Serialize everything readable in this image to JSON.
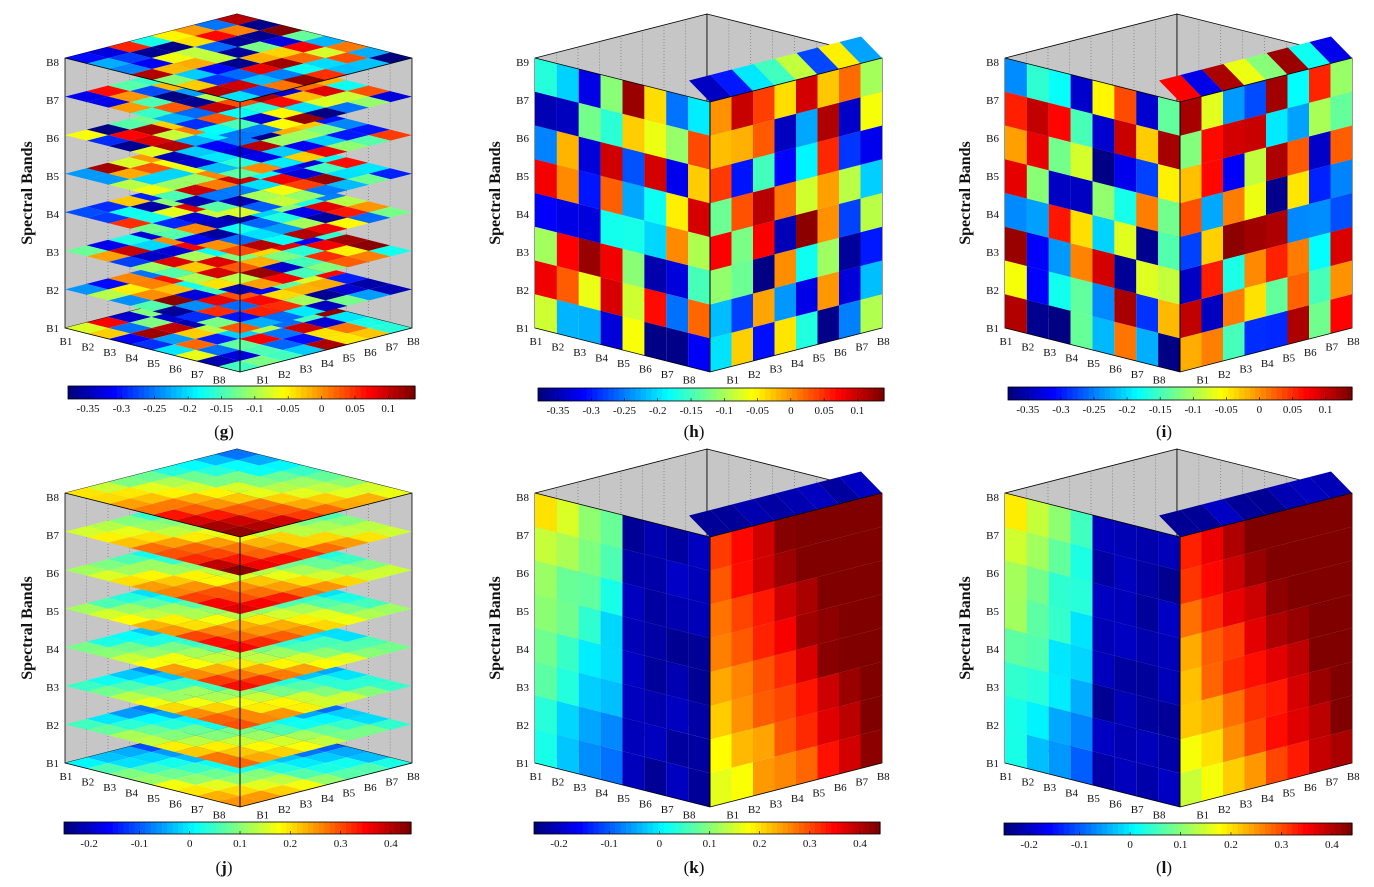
{
  "figure": {
    "description_labels": [
      "(g)",
      "(h)",
      "(i)",
      "(j)",
      "(k)",
      "(l)"
    ]
  },
  "colors": {
    "box_wall": "#c6c6c6",
    "edge": "#000000",
    "text": "#111111"
  },
  "chart_data": [
    {
      "type": "heatmap",
      "subtype": "3d-slice-cube",
      "panel_label": "g",
      "orientation": "horizontal-slices",
      "ylabel": "Spectral Bands",
      "z_tick_labels": [
        "B1",
        "B2",
        "B3",
        "B4",
        "B5",
        "B6",
        "B7",
        "B8"
      ],
      "left_axis_tick_labels": [
        "B1",
        "B2",
        "B3",
        "B4",
        "B5",
        "B6",
        "B7",
        "B8"
      ],
      "right_axis_tick_labels": [
        "B1",
        "B2",
        "B3",
        "B4",
        "B5",
        "B6",
        "B7",
        "B8"
      ],
      "colorbar": {
        "min": -0.38,
        "max": 0.14,
        "tick_labels": [
          "-0.35",
          "-0.3",
          "-0.25",
          "-0.2",
          "-0.15",
          "-0.1",
          "-0.05",
          "0",
          "0.05",
          "0.1"
        ],
        "tick_values": [
          -0.35,
          -0.3,
          -0.25,
          -0.2,
          -0.15,
          -0.1,
          -0.05,
          0,
          0.05,
          0.1
        ]
      },
      "pattern": "random",
      "pattern_seed": 7
    },
    {
      "type": "heatmap",
      "subtype": "3d-slice-cube",
      "panel_label": "h",
      "orientation": "vertical-slices",
      "ylabel": "Spectral Bands",
      "z_tick_labels": [
        "B1",
        "B2",
        "B3",
        "B4",
        "B5",
        "B6",
        "B7",
        "B9"
      ],
      "left_axis_tick_labels": [
        "B1",
        "B2",
        "B3",
        "B4",
        "B5",
        "B6",
        "B7",
        "B8"
      ],
      "right_axis_tick_labels": [
        "B1",
        "B2",
        "B3",
        "B4",
        "B5",
        "B6",
        "B7",
        "B8"
      ],
      "colorbar": {
        "min": -0.38,
        "max": 0.14,
        "tick_labels": [
          "-0.35",
          "-0.3",
          "-0.25",
          "-0.2",
          "-0.15",
          "-0.1",
          "-0.05",
          "0",
          "0.05",
          "0.1"
        ],
        "tick_values": [
          -0.35,
          -0.3,
          -0.25,
          -0.2,
          -0.15,
          -0.1,
          -0.05,
          0,
          0.05,
          0.1
        ]
      },
      "pattern": "random",
      "pattern_seed": 13
    },
    {
      "type": "heatmap",
      "subtype": "3d-slice-cube",
      "panel_label": "i",
      "orientation": "vertical-slices",
      "ylabel": "Spectral Bands",
      "z_tick_labels": [
        "B1",
        "B2",
        "B3",
        "B4",
        "B5",
        "B6",
        "B7",
        "B8"
      ],
      "left_axis_tick_labels": [
        "B1",
        "B2",
        "B3",
        "B4",
        "B5",
        "B6",
        "B7",
        "B8"
      ],
      "right_axis_tick_labels": [
        "B1",
        "B2",
        "B3",
        "B4",
        "B5",
        "B6",
        "B7",
        "B8"
      ],
      "colorbar": {
        "min": -0.38,
        "max": 0.14,
        "tick_labels": [
          "-0.35",
          "-0.3",
          "-0.25",
          "-0.2",
          "-0.15",
          "-0.1",
          "-0.05",
          "0",
          "0.05",
          "0.1"
        ],
        "tick_values": [
          -0.35,
          -0.3,
          -0.25,
          -0.2,
          -0.15,
          -0.1,
          -0.05,
          0,
          0.05,
          0.1
        ]
      },
      "pattern": "random",
      "pattern_seed": 29
    },
    {
      "type": "heatmap",
      "subtype": "3d-slice-cube",
      "panel_label": "j",
      "orientation": "horizontal-slices",
      "ylabel": "Spectral Bands",
      "z_tick_labels": [
        "B1",
        "B2",
        "B3",
        "B4",
        "B5",
        "B6",
        "B7",
        "B8"
      ],
      "left_axis_tick_labels": [
        "B1",
        "B2",
        "B3",
        "B4",
        "B5",
        "B6",
        "B7",
        "B8"
      ],
      "right_axis_tick_labels": [
        "B1",
        "B2",
        "B3",
        "B4",
        "B5",
        "B6",
        "B7",
        "B8"
      ],
      "colorbar": {
        "min": -0.25,
        "max": 0.44,
        "tick_labels": [
          "-0.2",
          "-0.1",
          "0",
          "0.1",
          "0.2",
          "0.3",
          "0.4"
        ],
        "tick_values": [
          -0.2,
          -0.1,
          0,
          0.1,
          0.2,
          0.3,
          0.4
        ]
      },
      "pattern": "gradient",
      "pattern_seed": 3
    },
    {
      "type": "heatmap",
      "subtype": "3d-slice-cube",
      "panel_label": "k",
      "orientation": "vertical-slices",
      "ylabel": "Spectral Bands",
      "z_tick_labels": [
        "B1",
        "B2",
        "B3",
        "B4",
        "B5",
        "B6",
        "B7",
        "B8"
      ],
      "left_axis_tick_labels": [
        "B1",
        "B2",
        "B3",
        "B4",
        "B5",
        "B6",
        "B7",
        "B8"
      ],
      "right_axis_tick_labels": [
        "B1",
        "B2",
        "B3",
        "B4",
        "B5",
        "B6",
        "B7",
        "B8"
      ],
      "colorbar": {
        "min": -0.25,
        "max": 0.44,
        "tick_labels": [
          "-0.2",
          "-0.1",
          "0",
          "0.1",
          "0.2",
          "0.3",
          "0.4"
        ],
        "tick_values": [
          -0.2,
          -0.1,
          0,
          0.1,
          0.2,
          0.3,
          0.4
        ]
      },
      "pattern": "gradient",
      "pattern_seed": 5
    },
    {
      "type": "heatmap",
      "subtype": "3d-slice-cube",
      "panel_label": "l",
      "orientation": "vertical-slices",
      "ylabel": "Spectral Bands",
      "z_tick_labels": [
        "B1",
        "B2",
        "B3",
        "B4",
        "B5",
        "B6",
        "B7",
        "B8"
      ],
      "left_axis_tick_labels": [
        "B1",
        "B2",
        "B3",
        "B4",
        "B5",
        "B6",
        "B7",
        "B8"
      ],
      "right_axis_tick_labels": [
        "B1",
        "B2",
        "B3",
        "B4",
        "B5",
        "B6",
        "B7",
        "B8"
      ],
      "colorbar": {
        "min": -0.25,
        "max": 0.44,
        "tick_labels": [
          "-0.2",
          "-0.1",
          "0",
          "0.1",
          "0.2",
          "0.3",
          "0.4"
        ],
        "tick_values": [
          -0.2,
          -0.1,
          0,
          0.1,
          0.2,
          0.3,
          0.4
        ]
      },
      "pattern": "gradient",
      "pattern_seed": 11
    }
  ]
}
